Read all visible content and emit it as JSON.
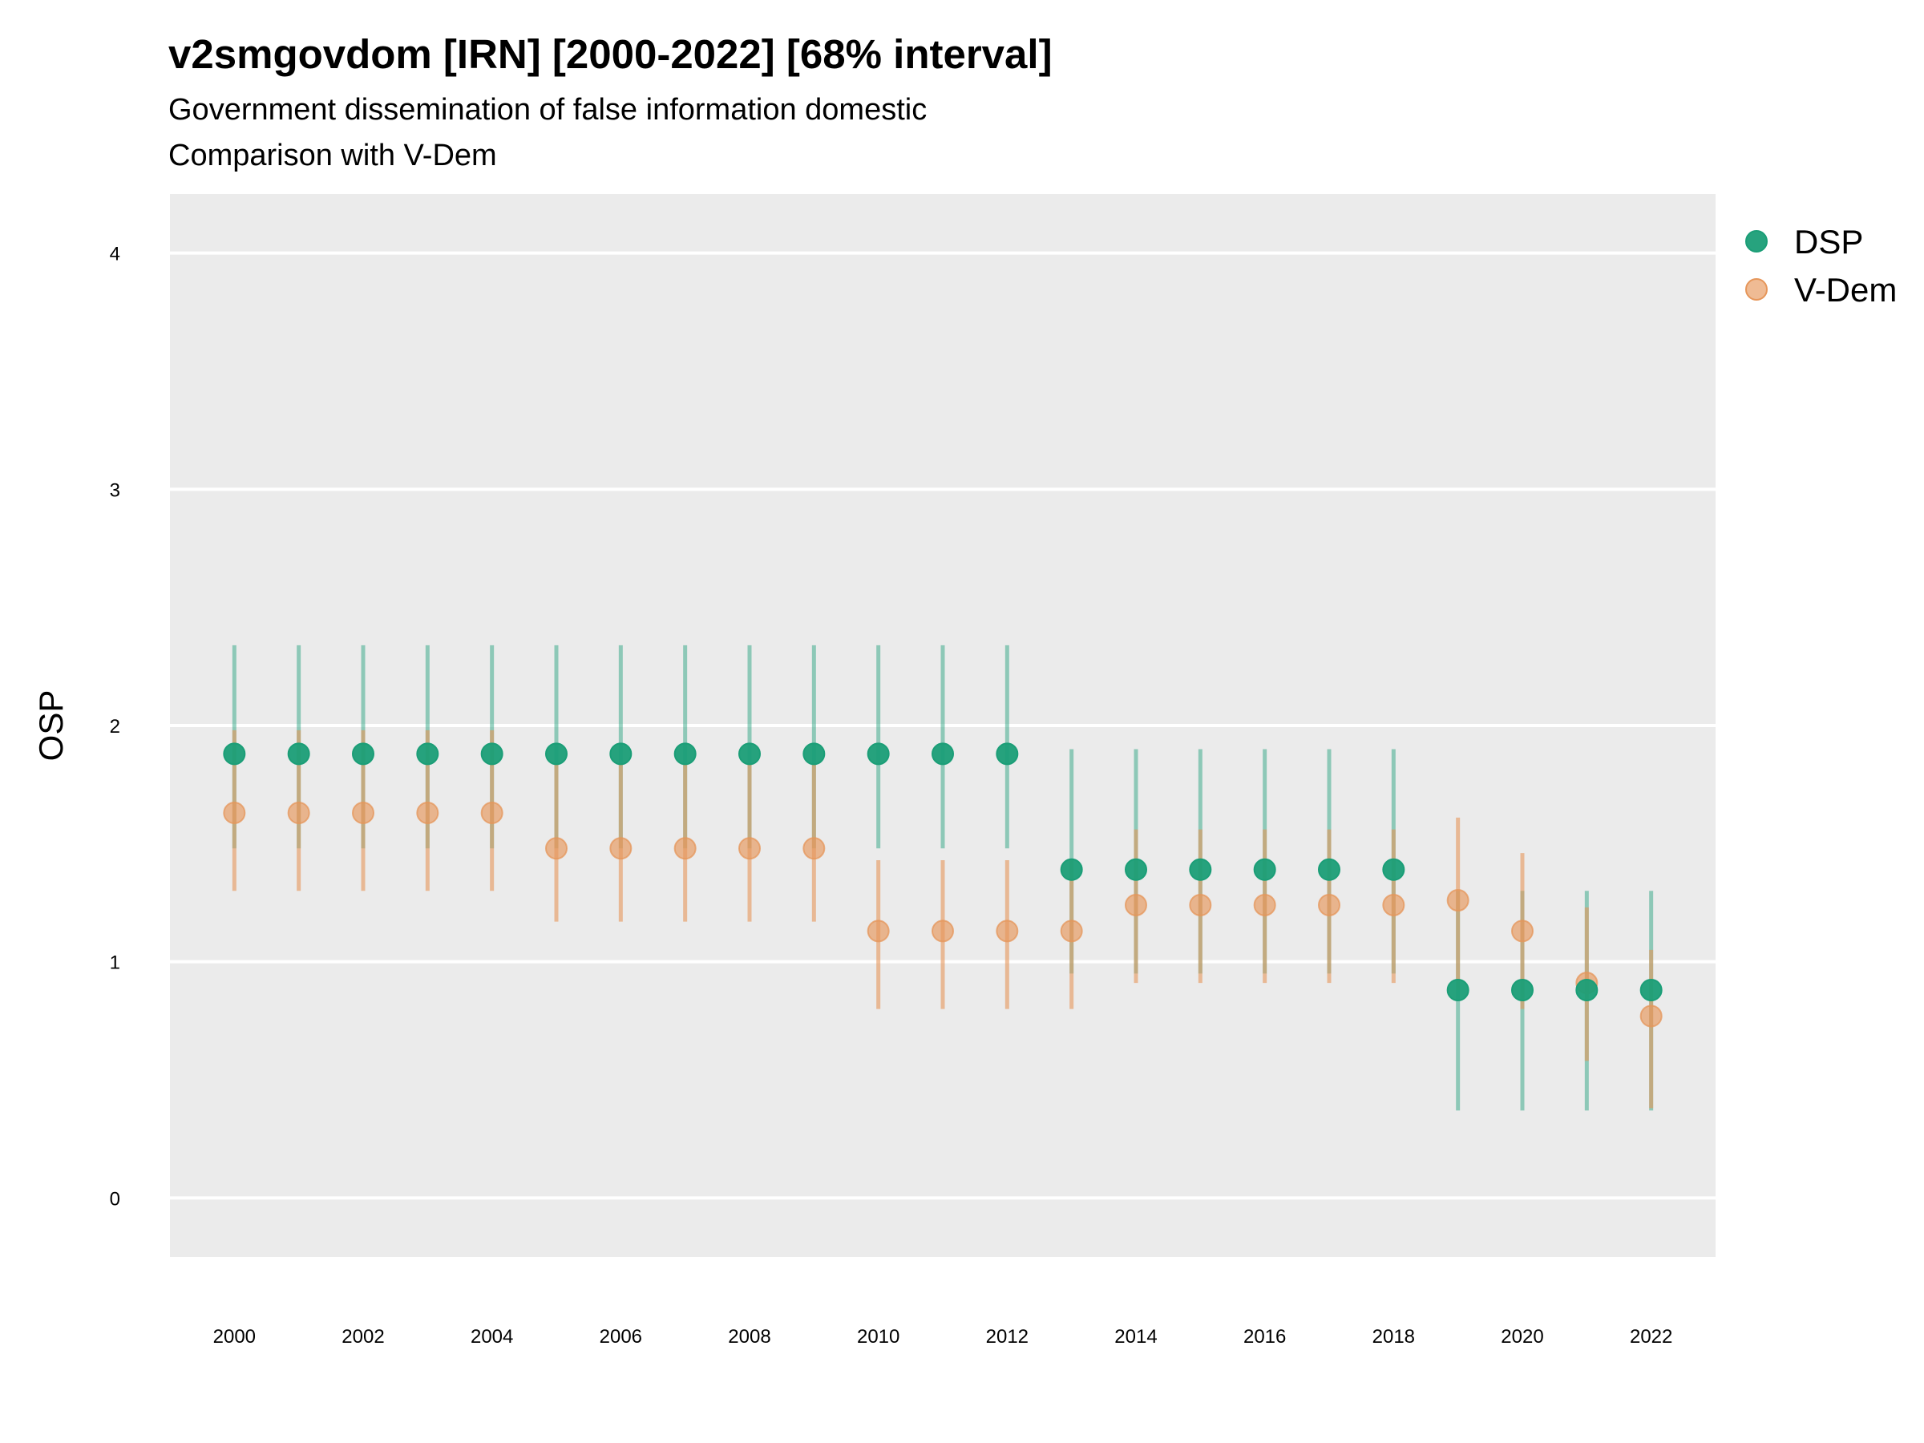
{
  "title": "v2smgovdom [IRN] [2000-2022] [68% interval]",
  "subtitle": "Government dissemination of false information domestic",
  "subtitle2": "Comparison with V-Dem",
  "colors": {
    "panel": "#ebebeb",
    "grid": "#ffffff",
    "dsp": "#1b9e77",
    "vdem": "#e6965a"
  },
  "chart_data": {
    "type": "scatter",
    "ylabel": "OSP",
    "xlabel": "",
    "ylim": [
      -0.25,
      4.25
    ],
    "yticks": [
      0,
      1,
      2,
      3,
      4
    ],
    "xticks": [
      2000,
      2002,
      2004,
      2006,
      2008,
      2010,
      2012,
      2014,
      2016,
      2018,
      2020,
      2022
    ],
    "legend": {
      "position": "right",
      "entries": [
        "DSP",
        "V-Dem"
      ]
    },
    "series": [
      {
        "name": "DSP",
        "x": [
          2000,
          2001,
          2002,
          2003,
          2004,
          2005,
          2006,
          2007,
          2008,
          2009,
          2010,
          2011,
          2012,
          2013,
          2014,
          2015,
          2016,
          2017,
          2018,
          2019,
          2020,
          2021,
          2022
        ],
        "y": [
          1.88,
          1.88,
          1.88,
          1.88,
          1.88,
          1.88,
          1.88,
          1.88,
          1.88,
          1.88,
          1.88,
          1.88,
          1.88,
          1.39,
          1.39,
          1.39,
          1.39,
          1.39,
          1.39,
          0.88,
          0.88,
          0.88,
          0.88
        ],
        "lower": [
          1.48,
          1.48,
          1.48,
          1.48,
          1.48,
          1.48,
          1.48,
          1.48,
          1.48,
          1.48,
          1.48,
          1.48,
          1.48,
          0.95,
          0.95,
          0.95,
          0.95,
          0.95,
          0.95,
          0.37,
          0.37,
          0.37,
          0.37
        ],
        "upper": [
          2.34,
          2.34,
          2.34,
          2.34,
          2.34,
          2.34,
          2.34,
          2.34,
          2.34,
          2.34,
          2.34,
          2.34,
          2.34,
          1.9,
          1.9,
          1.9,
          1.9,
          1.9,
          1.9,
          1.3,
          1.3,
          1.3,
          1.3
        ]
      },
      {
        "name": "V-Dem",
        "x": [
          2000,
          2001,
          2002,
          2003,
          2004,
          2005,
          2006,
          2007,
          2008,
          2009,
          2010,
          2011,
          2012,
          2013,
          2014,
          2015,
          2016,
          2017,
          2018,
          2019,
          2020,
          2021,
          2022
        ],
        "y": [
          1.63,
          1.63,
          1.63,
          1.63,
          1.63,
          1.48,
          1.48,
          1.48,
          1.48,
          1.48,
          1.13,
          1.13,
          1.13,
          1.13,
          1.24,
          1.24,
          1.24,
          1.24,
          1.24,
          1.26,
          1.13,
          0.91,
          0.77
        ],
        "lower": [
          1.3,
          1.3,
          1.3,
          1.3,
          1.3,
          1.17,
          1.17,
          1.17,
          1.17,
          1.17,
          0.8,
          0.8,
          0.8,
          0.8,
          0.91,
          0.91,
          0.91,
          0.91,
          0.91,
          0.88,
          0.8,
          0.58,
          0.38
        ],
        "upper": [
          1.98,
          1.98,
          1.98,
          1.98,
          1.98,
          1.84,
          1.84,
          1.84,
          1.84,
          1.84,
          1.43,
          1.43,
          1.43,
          1.43,
          1.56,
          1.56,
          1.56,
          1.56,
          1.56,
          1.61,
          1.46,
          1.23,
          1.05
        ]
      }
    ]
  }
}
